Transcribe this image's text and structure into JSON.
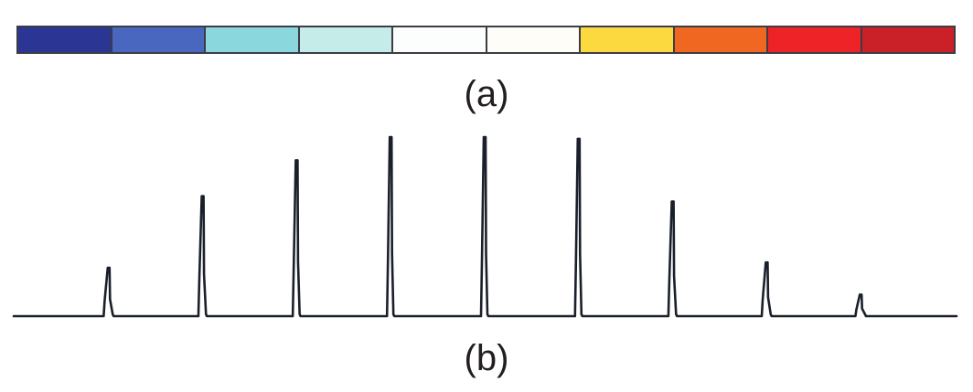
{
  "colorbar": {
    "swatches": [
      "#2b3694",
      "#4a67bf",
      "#8ad8dd",
      "#c6ecea",
      "#fcfefe",
      "#fefdf8",
      "#fcd93f",
      "#f06722",
      "#ee2327",
      "#c92127"
    ]
  },
  "labels": {
    "a": "(a)",
    "b": "(b)"
  },
  "signal": {
    "line_color": "#1a202a",
    "baseline": 0,
    "peaks": [
      {
        "index": 1,
        "height": 0.27
      },
      {
        "index": 2,
        "height": 0.67
      },
      {
        "index": 3,
        "height": 0.87
      },
      {
        "index": 4,
        "height": 1.0
      },
      {
        "index": 5,
        "height": 1.0
      },
      {
        "index": 6,
        "height": 0.99
      },
      {
        "index": 7,
        "height": 0.64
      },
      {
        "index": 8,
        "height": 0.3
      },
      {
        "index": 9,
        "height": 0.12
      }
    ]
  }
}
